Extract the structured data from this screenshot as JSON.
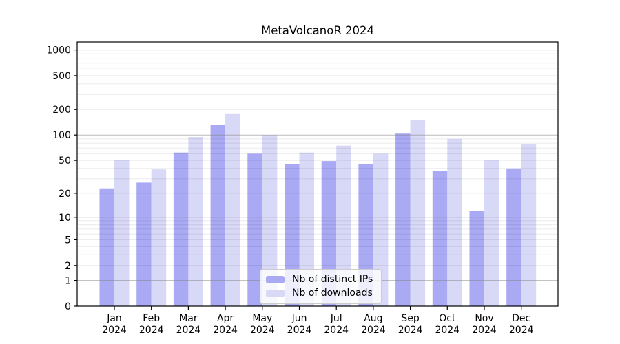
{
  "chart_data": {
    "type": "bar",
    "title": "MetaVolcanoR 2024",
    "categories": [
      "Jan",
      "Feb",
      "Mar",
      "Apr",
      "May",
      "Jun",
      "Jul",
      "Aug",
      "Sep",
      "Oct",
      "Nov",
      "Dec"
    ],
    "year_label": "2024",
    "series": [
      {
        "name": "Nb of distinct IPs",
        "color": "#a9a9f4",
        "values": [
          23,
          27,
          62,
          133,
          60,
          45,
          49,
          45,
          104,
          37,
          12,
          40
        ]
      },
      {
        "name": "Nb of downloads",
        "color": "#d8d8f7",
        "values": [
          51,
          39,
          95,
          180,
          100,
          62,
          75,
          60,
          151,
          90,
          50,
          78
        ]
      }
    ],
    "xlabel": "",
    "ylabel": "",
    "y_ticks": [
      0,
      1,
      2,
      5,
      10,
      20,
      50,
      100,
      200,
      500,
      1000
    ],
    "y_scale": "log1p",
    "ylim": [
      0,
      1250
    ],
    "grid": "horizontal major+minor (log decades)",
    "legend_position": "bottom-center"
  },
  "colors": {
    "background": "#ffffff",
    "axis": "#000000",
    "major_grid": "#828282",
    "minor_grid": "#000000",
    "legend_border": "#cccccc"
  }
}
